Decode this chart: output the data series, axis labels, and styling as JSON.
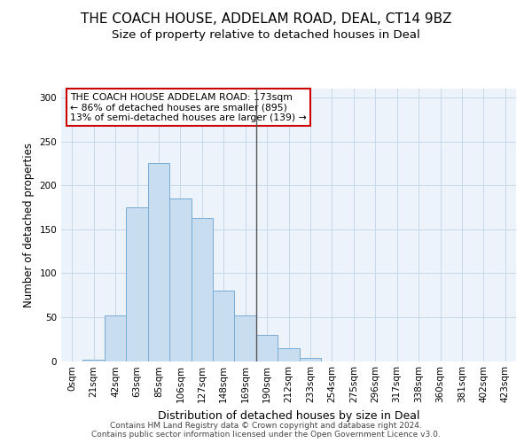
{
  "title": "THE COACH HOUSE, ADDELAM ROAD, DEAL, CT14 9BZ",
  "subtitle": "Size of property relative to detached houses in Deal",
  "xlabel": "Distribution of detached houses by size in Deal",
  "ylabel": "Number of detached properties",
  "bar_labels": [
    "0sqm",
    "21sqm",
    "42sqm",
    "63sqm",
    "85sqm",
    "106sqm",
    "127sqm",
    "148sqm",
    "169sqm",
    "190sqm",
    "212sqm",
    "233sqm",
    "254sqm",
    "275sqm",
    "296sqm",
    "317sqm",
    "338sqm",
    "360sqm",
    "381sqm",
    "402sqm",
    "423sqm"
  ],
  "bar_heights": [
    0,
    2,
    52,
    175,
    225,
    185,
    163,
    80,
    52,
    30,
    15,
    4,
    0,
    0,
    0,
    0,
    0,
    0,
    0,
    0,
    0
  ],
  "bar_color": "#c9ddf0",
  "bar_edge_color": "#7aadd4",
  "vline_x": 8.5,
  "annotation_text": "THE COACH HOUSE ADDELAM ROAD: 173sqm\n← 86% of detached houses are smaller (895)\n13% of semi-detached houses are larger (139) →",
  "annotation_box_color": "#ffffff",
  "annotation_box_edge": "#cc0000",
  "vline_color": "#555555",
  "grid_color": "#c8d8e8",
  "bg_color": "#edf3fa",
  "footer": "Contains HM Land Registry data © Crown copyright and database right 2024.\nContains public sector information licensed under the Open Government Licence v3.0.",
  "ylim": [
    0,
    310
  ],
  "yticks": [
    0,
    50,
    100,
    150,
    200,
    250,
    300
  ],
  "title_fontsize": 11,
  "subtitle_fontsize": 9.5,
  "ylabel_fontsize": 8.5,
  "xlabel_fontsize": 9,
  "tick_fontsize": 7.5,
  "annot_fontsize": 7.8,
  "footer_fontsize": 6.5
}
